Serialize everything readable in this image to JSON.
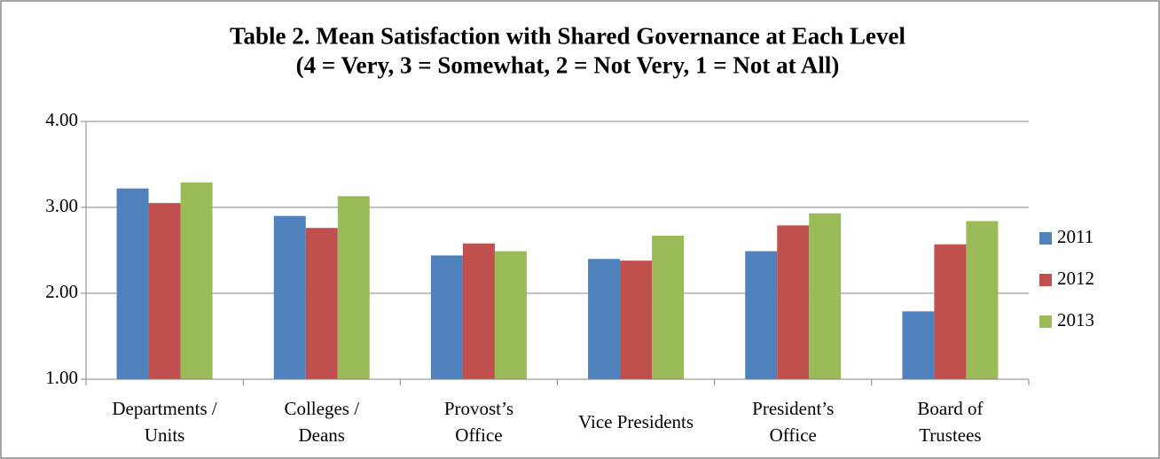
{
  "chart_data": {
    "type": "bar",
    "title": "Table 2.  Mean Satisfaction with Shared Governance at Each Level\n(4 = Very, 3 = Somewhat, 2 = Not Very, 1 = Not at All)",
    "categories": [
      "Departments /\nUnits",
      "Colleges /\nDeans",
      "Provost’s\nOffice",
      "Vice Presidents",
      "President’s\nOffice",
      "Board of\nTrustees"
    ],
    "series": [
      {
        "name": "2011",
        "color": "#4f81bd",
        "values": [
          3.22,
          2.9,
          2.44,
          2.4,
          2.49,
          1.79
        ]
      },
      {
        "name": "2012",
        "color": "#c0504d",
        "values": [
          3.05,
          2.76,
          2.58,
          2.38,
          2.79,
          2.57
        ]
      },
      {
        "name": "2013",
        "color": "#9bbb59",
        "values": [
          3.29,
          3.13,
          2.49,
          2.67,
          2.93,
          2.84
        ]
      }
    ],
    "ylim": [
      1,
      4
    ],
    "yticks": [
      {
        "value": 1,
        "label": "1.00"
      },
      {
        "value": 2,
        "label": "2.00"
      },
      {
        "value": 3,
        "label": "3.00"
      },
      {
        "value": 4,
        "label": "4.00"
      }
    ],
    "grid": true,
    "legend": "right"
  }
}
